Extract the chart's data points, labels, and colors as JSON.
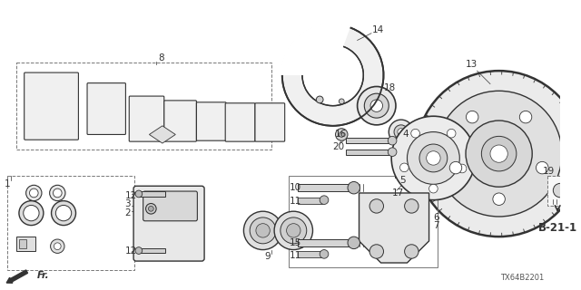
{
  "background_color": "#ffffff",
  "diagram_code": "TX64B2201",
  "reference": "B-21-1",
  "line_color": "#333333",
  "light_gray": "#cccccc",
  "mid_gray": "#888888",
  "dark_gray": "#555555",
  "label_fontsize": 7.5
}
